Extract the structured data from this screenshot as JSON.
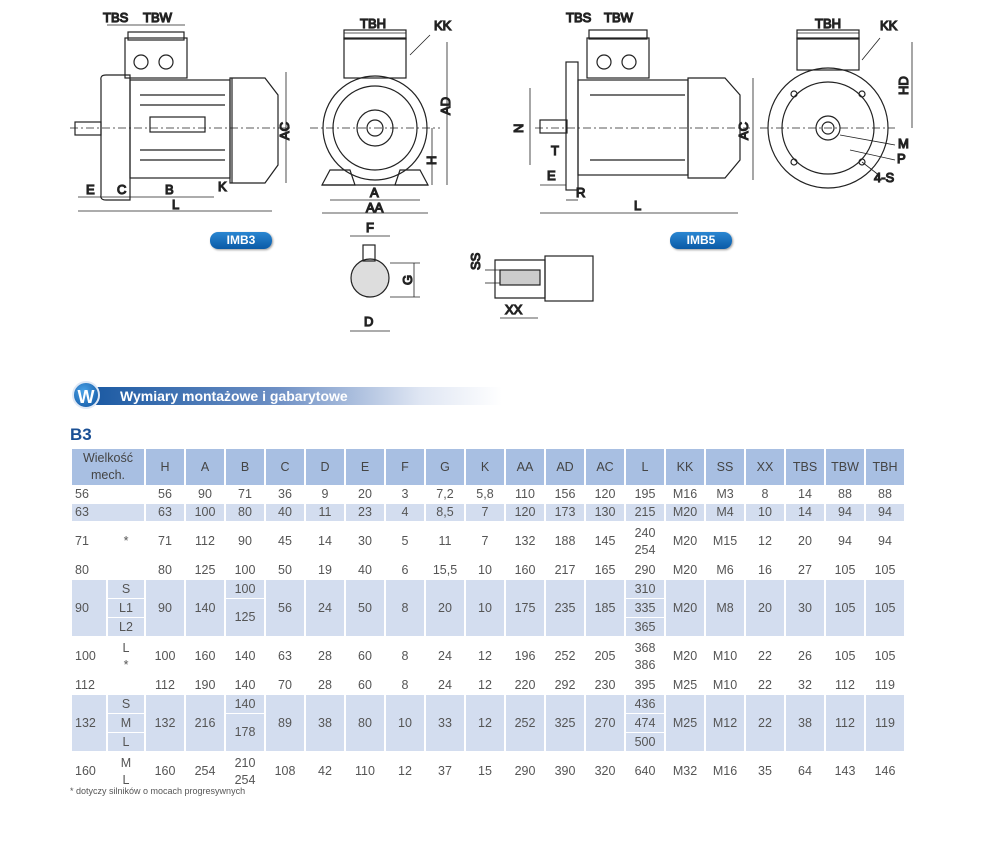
{
  "drawings": {
    "imb3_side": {
      "TBS": "TBS",
      "TBW": "TBW",
      "AC": "AC",
      "E": "E",
      "C": "C",
      "B": "B",
      "K": "K",
      "L": "L"
    },
    "front": {
      "TBH": "TBH",
      "KK": "KK",
      "AD": "AD",
      "H": "H",
      "A": "A",
      "AA": "AA"
    },
    "shaft_section": {
      "F": "F",
      "G": "G",
      "D": "D"
    },
    "shaft_end": {
      "SS": "SS",
      "XX": "XX"
    },
    "imb5_side": {
      "TBS": "TBS",
      "TBW": "TBW",
      "N": "N",
      "T": "T",
      "E": "E",
      "R": "R",
      "AC": "AC",
      "L": "L"
    },
    "flange": {
      "TBH": "TBH",
      "KK": "KK",
      "HD": "HD",
      "M": "M",
      "P": "P",
      "S": "4-S"
    },
    "badge_imb3": "IMB3",
    "badge_imb5": "IMB5"
  },
  "section": {
    "icon_letter": "W",
    "title": "Wymiary montażowe i gabarytowe",
    "subtitle": "B3"
  },
  "table": {
    "header_first": "Wielkość mech.",
    "columns": [
      "H",
      "A",
      "B",
      "C",
      "D",
      "E",
      "F",
      "G",
      "K",
      "AA",
      "AD",
      "AC",
      "L",
      "KK",
      "SS",
      "XX",
      "TBS",
      "TBW",
      "TBH"
    ],
    "rows": [
      {
        "size": "56",
        "sub": "",
        "units": 1,
        "shaded": false,
        "values": [
          "56",
          "90",
          "71",
          "36",
          "9",
          "20",
          "3",
          "7,2",
          "5,8",
          "110",
          "156",
          "120",
          "195",
          "M16",
          "M3",
          "8",
          "14",
          "88",
          "88"
        ]
      },
      {
        "size": "63",
        "sub": "",
        "units": 1,
        "shaded": true,
        "values": [
          "63",
          "100",
          "80",
          "40",
          "11",
          "23",
          "4",
          "8,5",
          "7",
          "120",
          "173",
          "130",
          "215",
          "M20",
          "M4",
          "10",
          "14",
          "94",
          "94"
        ]
      },
      {
        "size": "71",
        "sub": "*",
        "units": 2,
        "shaded": false,
        "values": [
          "71",
          "112",
          "90",
          "45",
          "14",
          "30",
          "5",
          "11",
          "7",
          "132",
          "188",
          "145",
          [
            "240",
            "254"
          ],
          "M20",
          "M15",
          "12",
          "20",
          "94",
          "94"
        ]
      },
      {
        "size": "80",
        "sub": "",
        "units": 1,
        "shaded": false,
        "values": [
          "80",
          "125",
          "100",
          "50",
          "19",
          "40",
          "6",
          "15,5",
          "10",
          "160",
          "217",
          "165",
          "290",
          "M20",
          "M6",
          "16",
          "27",
          "105",
          "105"
        ]
      },
      {
        "size": "90",
        "sub": [
          "S",
          "L1",
          "L2"
        ],
        "units": 3,
        "shaded": true,
        "values": [
          "90",
          "140",
          [
            "100",
            "125"
          ],
          "56",
          "24",
          "50",
          "8",
          "20",
          "10",
          "175",
          "235",
          "185",
          [
            "310",
            "335",
            "365"
          ],
          "M20",
          "M8",
          "20",
          "30",
          "105",
          "105"
        ]
      },
      {
        "size": "100",
        "sub": [
          "L",
          "*"
        ],
        "units": 2,
        "shaded": false,
        "values": [
          "100",
          "160",
          "140",
          "63",
          "28",
          "60",
          "8",
          "24",
          "12",
          "196",
          "252",
          "205",
          [
            "368",
            "386"
          ],
          "M20",
          "M10",
          "22",
          "26",
          "105",
          "105"
        ]
      },
      {
        "size": "112",
        "sub": "",
        "units": 1,
        "shaded": false,
        "values": [
          "112",
          "190",
          "140",
          "70",
          "28",
          "60",
          "8",
          "24",
          "12",
          "220",
          "292",
          "230",
          "395",
          "M25",
          "M10",
          "22",
          "32",
          "112",
          "119"
        ]
      },
      {
        "size": "132",
        "sub": [
          "S",
          "M",
          "L"
        ],
        "units": 3,
        "shaded": true,
        "values": [
          "132",
          "216",
          [
            "140",
            "178"
          ],
          "89",
          "38",
          "80",
          "10",
          "33",
          "12",
          "252",
          "325",
          "270",
          [
            "436",
            "474",
            "500"
          ],
          "M25",
          "M12",
          "22",
          "38",
          "112",
          "119"
        ]
      },
      {
        "size": "160",
        "sub": [
          "M",
          "L"
        ],
        "units": 2,
        "shaded": false,
        "values": [
          "160",
          "254",
          [
            "210",
            "254"
          ],
          "108",
          "42",
          "110",
          "12",
          "37",
          "15",
          "290",
          "390",
          "320",
          "640",
          "M32",
          "M16",
          "35",
          "64",
          "143",
          "146"
        ]
      }
    ],
    "footnote": "* dotyczy silników o mocach progresywnych"
  },
  "colors": {
    "header": "#a8bfe2",
    "shaded": "#d3ddef",
    "title": "#1a4f94",
    "badge": "#0a5aa6"
  }
}
